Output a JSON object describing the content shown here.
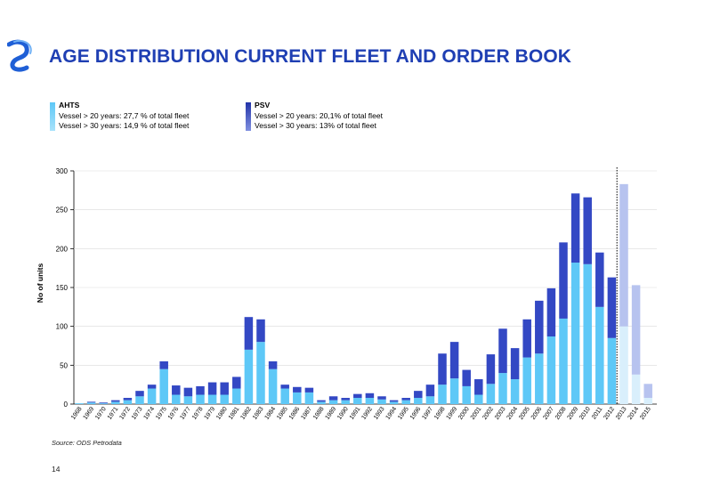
{
  "page": {
    "title": "AGE DISTRIBUTION CURRENT FLEET AND ORDER BOOK",
    "source": "Source: ODS Petrodata",
    "page_number": "14"
  },
  "legend": {
    "ahts": {
      "title": "AHTS",
      "line1": "Vessel > 20 years: 27,7 % of total fleet",
      "line2": "Vessel > 30 years: 14,9 % of total fleet"
    },
    "psv": {
      "title": "PSV",
      "line1": "Vessel > 20 years: 20,1% of total fleet",
      "line2": "Vessel > 30 years: 13% of total fleet"
    }
  },
  "colors": {
    "title": "#1f3fb3",
    "ahts": "#5ec8f7",
    "psv": "#3348c4",
    "order_ahts": "#d9effc",
    "order_psv": "#b7c3ef",
    "axis": "#000000"
  },
  "chart_data": {
    "type": "bar",
    "stacked": true,
    "ylabel": "No of units",
    "ylim": [
      0,
      300
    ],
    "yticks": [
      0,
      50,
      100,
      150,
      200,
      250,
      300
    ],
    "categories": [
      "1968",
      "1969",
      "1970",
      "1971",
      "1972",
      "1973",
      "1974",
      "1975",
      "1976",
      "1977",
      "1978",
      "1979",
      "1980",
      "1981",
      "1982",
      "1983",
      "1984",
      "1985",
      "1986",
      "1987",
      "1988",
      "1989",
      "1990",
      "1991",
      "1992",
      "1993",
      "1994",
      "1995",
      "1996",
      "1997",
      "1998",
      "1999",
      "2000",
      "2001",
      "2002",
      "2003",
      "2004",
      "2005",
      "2006",
      "2007",
      "2008",
      "2009",
      "2010",
      "2011",
      "2012",
      "2013",
      "2014",
      "2015"
    ],
    "order_book_from": "2013",
    "series": [
      {
        "name": "AHTS",
        "values": [
          1,
          2,
          1,
          3,
          5,
          10,
          20,
          45,
          12,
          10,
          12,
          12,
          12,
          20,
          70,
          80,
          45,
          20,
          15,
          15,
          3,
          5,
          5,
          8,
          8,
          6,
          3,
          5,
          8,
          10,
          25,
          33,
          23,
          12,
          26,
          40,
          32,
          60,
          65,
          87,
          110,
          182,
          180,
          125,
          85,
          100,
          38,
          8
        ]
      },
      {
        "name": "PSV",
        "values": [
          0,
          1,
          1,
          2,
          3,
          7,
          5,
          10,
          12,
          11,
          11,
          16,
          16,
          15,
          42,
          29,
          10,
          5,
          7,
          6,
          2,
          5,
          3,
          5,
          6,
          4,
          2,
          3,
          9,
          15,
          40,
          47,
          21,
          20,
          38,
          57,
          40,
          49,
          68,
          62,
          98,
          89,
          86,
          70,
          78,
          183,
          115,
          18
        ]
      }
    ]
  }
}
